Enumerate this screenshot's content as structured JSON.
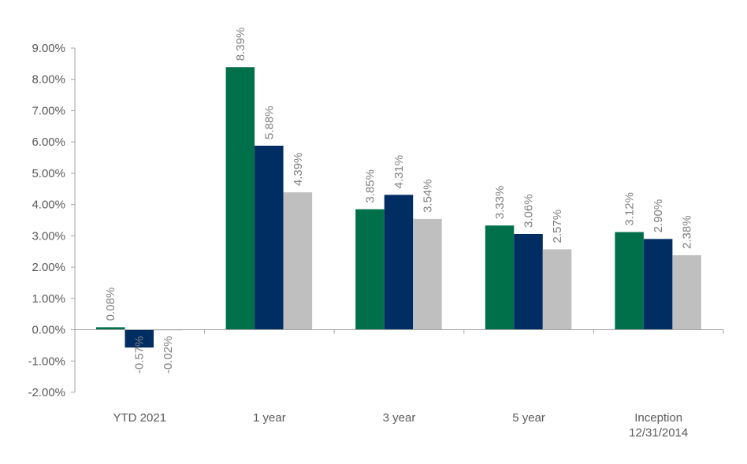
{
  "chart_data": {
    "type": "bar",
    "categories": [
      [
        "YTD 2021"
      ],
      [
        "1 year"
      ],
      [
        "3 year"
      ],
      [
        "5 year"
      ],
      [
        "Inception",
        "12/31/2014"
      ]
    ],
    "series": [
      {
        "color": "#00704A",
        "values": [
          0.08,
          8.39,
          3.85,
          3.33,
          3.12
        ],
        "labels": [
          "0.08%",
          "8.39%",
          "3.85%",
          "3.33%",
          "3.12%"
        ]
      },
      {
        "color": "#002D62",
        "values": [
          -0.57,
          5.88,
          4.31,
          3.06,
          2.9
        ],
        "labels": [
          "-0.57%",
          "5.88%",
          "4.31%",
          "3.06%",
          "2.90%"
        ]
      },
      {
        "color": "#BFBFBF",
        "values": [
          -0.02,
          4.39,
          3.54,
          2.57,
          2.38
        ],
        "labels": [
          "-0.02%",
          "4.39%",
          "3.54%",
          "2.57%",
          "2.38%"
        ]
      }
    ],
    "y_ticks": [
      9,
      8,
      7,
      6,
      5,
      4,
      3,
      2,
      1,
      0,
      -1,
      -2
    ],
    "y_tick_labels": [
      "9.00%",
      "8.00%",
      "7.00%",
      "6.00%",
      "5.00%",
      "4.00%",
      "3.00%",
      "2.00%",
      "1.00%",
      "0.00%",
      "-1.00%",
      "-2.00%"
    ],
    "ylim": [
      -2,
      9
    ],
    "grid": false,
    "legend": "none",
    "data_labels": "rotated-vertical"
  }
}
